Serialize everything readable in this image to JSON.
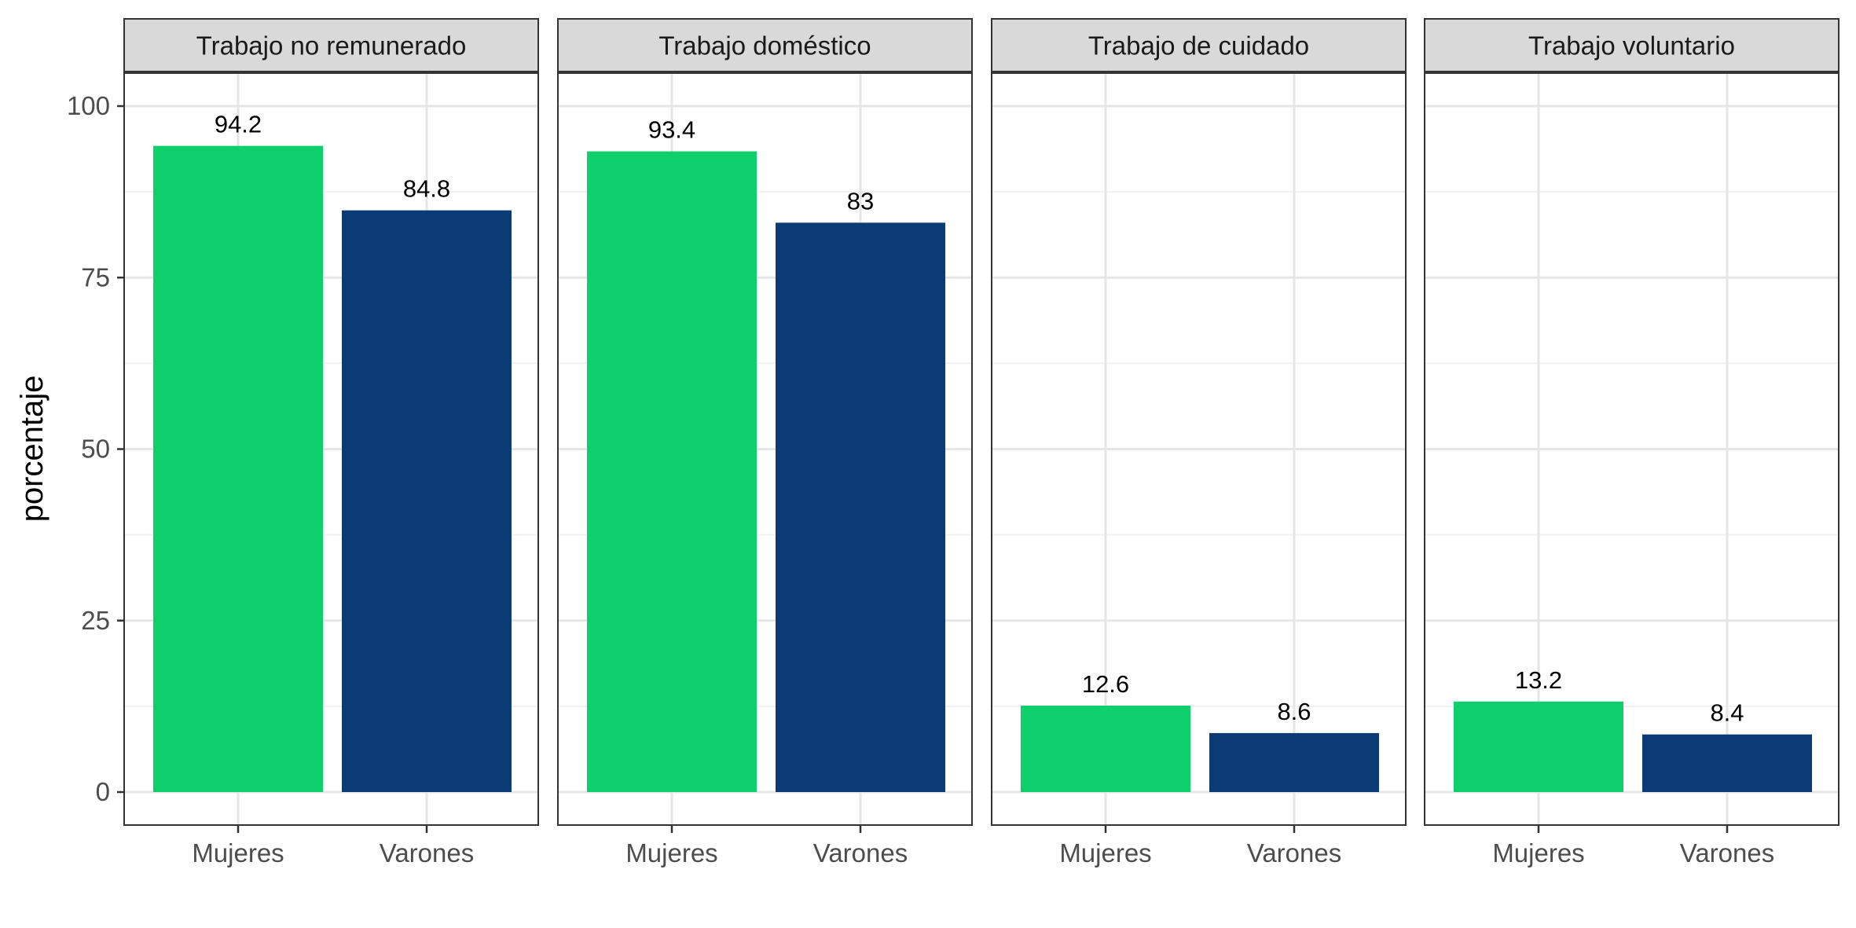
{
  "chart_data": {
    "type": "bar",
    "ylabel": "porcentaje",
    "ylim": [
      0,
      105
    ],
    "yticks": [
      0,
      25,
      50,
      75,
      100
    ],
    "categories": [
      "Mujeres",
      "Varones"
    ],
    "colors": {
      "Mujeres": "#0ecf6b",
      "Varones": "#0a3b75"
    },
    "grid": true,
    "panels": [
      {
        "title": "Trabajo no remunerado",
        "values": [
          94.2,
          84.8
        ],
        "labels": [
          "94.2",
          "84.8"
        ]
      },
      {
        "title": "Trabajo doméstico",
        "values": [
          93.4,
          83
        ],
        "labels": [
          "93.4",
          "83"
        ]
      },
      {
        "title": "Trabajo de cuidado",
        "values": [
          12.6,
          8.6
        ],
        "labels": [
          "12.6",
          "8.6"
        ]
      },
      {
        "title": "Trabajo voluntario",
        "values": [
          13.2,
          8.4
        ],
        "labels": [
          "13.2",
          "8.4"
        ]
      }
    ]
  }
}
